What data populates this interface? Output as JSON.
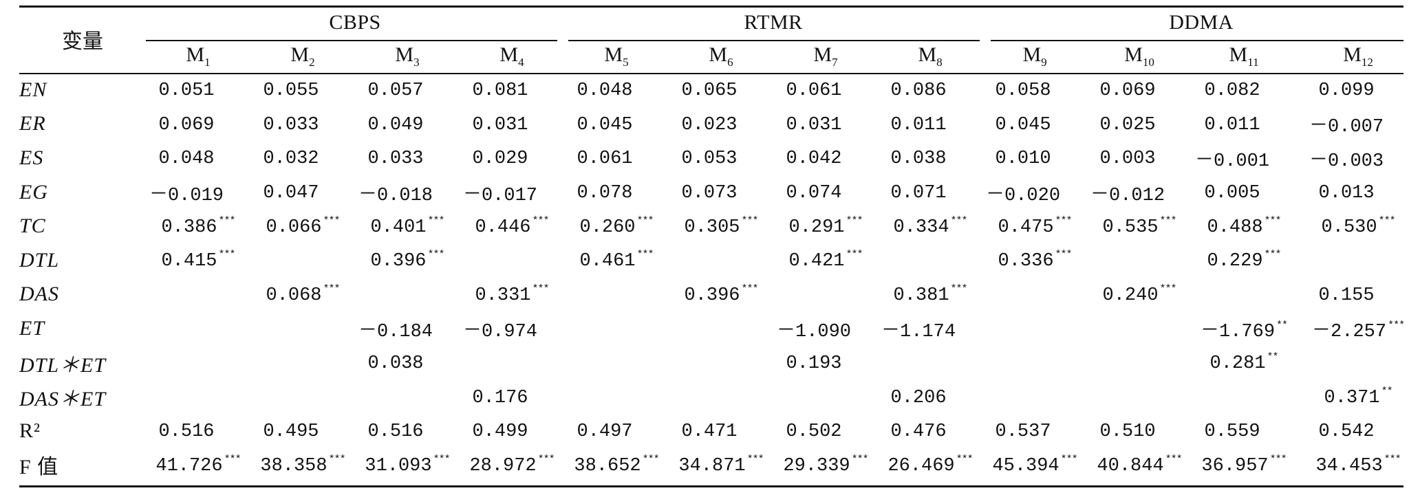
{
  "table": {
    "var_header": "变量",
    "groups": [
      "CBPS",
      "RTMR",
      "DDMA"
    ],
    "models": [
      {
        "base": "M",
        "sub": "1"
      },
      {
        "base": "M",
        "sub": "2"
      },
      {
        "base": "M",
        "sub": "3"
      },
      {
        "base": "M",
        "sub": "4"
      },
      {
        "base": "M",
        "sub": "5"
      },
      {
        "base": "M",
        "sub": "6"
      },
      {
        "base": "M",
        "sub": "7"
      },
      {
        "base": "M",
        "sub": "8"
      },
      {
        "base": "M",
        "sub": "9"
      },
      {
        "base": "M",
        "sub": "10"
      },
      {
        "base": "M",
        "sub": "11"
      },
      {
        "base": "M",
        "sub": "12"
      }
    ],
    "rows": [
      {
        "label": "EN",
        "italic": true,
        "cells": [
          {
            "v": "0.051",
            "s": ""
          },
          {
            "v": "0.055",
            "s": ""
          },
          {
            "v": "0.057",
            "s": ""
          },
          {
            "v": "0.081",
            "s": ""
          },
          {
            "v": "0.048",
            "s": ""
          },
          {
            "v": "0.065",
            "s": ""
          },
          {
            "v": "0.061",
            "s": ""
          },
          {
            "v": "0.086",
            "s": ""
          },
          {
            "v": "0.058",
            "s": ""
          },
          {
            "v": "0.069",
            "s": ""
          },
          {
            "v": "0.082",
            "s": ""
          },
          {
            "v": "0.099",
            "s": ""
          }
        ]
      },
      {
        "label": "ER",
        "italic": true,
        "cells": [
          {
            "v": "0.069",
            "s": ""
          },
          {
            "v": "0.033",
            "s": ""
          },
          {
            "v": "0.049",
            "s": ""
          },
          {
            "v": "0.031",
            "s": ""
          },
          {
            "v": "0.045",
            "s": ""
          },
          {
            "v": "0.023",
            "s": ""
          },
          {
            "v": "0.031",
            "s": ""
          },
          {
            "v": "0.011",
            "s": ""
          },
          {
            "v": "0.045",
            "s": ""
          },
          {
            "v": "0.025",
            "s": ""
          },
          {
            "v": "0.011",
            "s": ""
          },
          {
            "v": "－0.007",
            "s": ""
          }
        ]
      },
      {
        "label": "ES",
        "italic": true,
        "cells": [
          {
            "v": "0.048",
            "s": ""
          },
          {
            "v": "0.032",
            "s": ""
          },
          {
            "v": "0.033",
            "s": ""
          },
          {
            "v": "0.029",
            "s": ""
          },
          {
            "v": "0.061",
            "s": ""
          },
          {
            "v": "0.053",
            "s": ""
          },
          {
            "v": "0.042",
            "s": ""
          },
          {
            "v": "0.038",
            "s": ""
          },
          {
            "v": "0.010",
            "s": ""
          },
          {
            "v": "0.003",
            "s": ""
          },
          {
            "v": "－0.001",
            "s": ""
          },
          {
            "v": "－0.003",
            "s": ""
          }
        ]
      },
      {
        "label": "EG",
        "italic": true,
        "cells": [
          {
            "v": "－0.019",
            "s": ""
          },
          {
            "v": "0.047",
            "s": ""
          },
          {
            "v": "－0.018",
            "s": ""
          },
          {
            "v": "－0.017",
            "s": ""
          },
          {
            "v": "0.078",
            "s": ""
          },
          {
            "v": "0.073",
            "s": ""
          },
          {
            "v": "0.074",
            "s": ""
          },
          {
            "v": "0.071",
            "s": ""
          },
          {
            "v": "－0.020",
            "s": ""
          },
          {
            "v": "－0.012",
            "s": ""
          },
          {
            "v": "0.005",
            "s": ""
          },
          {
            "v": "0.013",
            "s": ""
          }
        ]
      },
      {
        "label": "TC",
        "italic": true,
        "cells": [
          {
            "v": "0.386",
            "s": "***"
          },
          {
            "v": "0.066",
            "s": "***"
          },
          {
            "v": "0.401",
            "s": "***"
          },
          {
            "v": "0.446",
            "s": "***"
          },
          {
            "v": "0.260",
            "s": "***"
          },
          {
            "v": "0.305",
            "s": "***"
          },
          {
            "v": "0.291",
            "s": "***"
          },
          {
            "v": "0.334",
            "s": "***"
          },
          {
            "v": "0.475",
            "s": "***"
          },
          {
            "v": "0.535",
            "s": "***"
          },
          {
            "v": "0.488",
            "s": "***"
          },
          {
            "v": "0.530",
            "s": "***"
          }
        ]
      },
      {
        "label": "DTL",
        "italic": true,
        "cells": [
          {
            "v": "0.415",
            "s": "***"
          },
          {
            "v": "",
            "s": ""
          },
          {
            "v": "0.396",
            "s": "***"
          },
          {
            "v": "",
            "s": ""
          },
          {
            "v": "0.461",
            "s": "***"
          },
          {
            "v": "",
            "s": ""
          },
          {
            "v": "0.421",
            "s": "***"
          },
          {
            "v": "",
            "s": ""
          },
          {
            "v": "0.336",
            "s": "***"
          },
          {
            "v": "",
            "s": ""
          },
          {
            "v": "0.229",
            "s": "***"
          },
          {
            "v": "",
            "s": ""
          }
        ]
      },
      {
        "label": "DAS",
        "italic": true,
        "cells": [
          {
            "v": "",
            "s": ""
          },
          {
            "v": "0.068",
            "s": "***"
          },
          {
            "v": "",
            "s": ""
          },
          {
            "v": "0.331",
            "s": "***"
          },
          {
            "v": "",
            "s": ""
          },
          {
            "v": "0.396",
            "s": "***"
          },
          {
            "v": "",
            "s": ""
          },
          {
            "v": "0.381",
            "s": "***"
          },
          {
            "v": "",
            "s": ""
          },
          {
            "v": "0.240",
            "s": "***"
          },
          {
            "v": "",
            "s": ""
          },
          {
            "v": "0.155",
            "s": ""
          }
        ]
      },
      {
        "label": "ET",
        "italic": true,
        "cells": [
          {
            "v": "",
            "s": ""
          },
          {
            "v": "",
            "s": ""
          },
          {
            "v": "－0.184",
            "s": ""
          },
          {
            "v": "－0.974",
            "s": ""
          },
          {
            "v": "",
            "s": ""
          },
          {
            "v": "",
            "s": ""
          },
          {
            "v": "－1.090",
            "s": ""
          },
          {
            "v": "－1.174",
            "s": ""
          },
          {
            "v": "",
            "s": ""
          },
          {
            "v": "",
            "s": ""
          },
          {
            "v": "－1.769",
            "s": "**"
          },
          {
            "v": "－2.257",
            "s": "***"
          }
        ]
      },
      {
        "label": "DTL＊ET",
        "italic": true,
        "cells": [
          {
            "v": "",
            "s": ""
          },
          {
            "v": "",
            "s": ""
          },
          {
            "v": "0.038",
            "s": ""
          },
          {
            "v": "",
            "s": ""
          },
          {
            "v": "",
            "s": ""
          },
          {
            "v": "",
            "s": ""
          },
          {
            "v": "0.193",
            "s": ""
          },
          {
            "v": "",
            "s": ""
          },
          {
            "v": "",
            "s": ""
          },
          {
            "v": "",
            "s": ""
          },
          {
            "v": "0.281",
            "s": "**"
          },
          {
            "v": "",
            "s": ""
          }
        ]
      },
      {
        "label": "DAS＊ET",
        "italic": true,
        "cells": [
          {
            "v": "",
            "s": ""
          },
          {
            "v": "",
            "s": ""
          },
          {
            "v": "",
            "s": ""
          },
          {
            "v": "0.176",
            "s": ""
          },
          {
            "v": "",
            "s": ""
          },
          {
            "v": "",
            "s": ""
          },
          {
            "v": "",
            "s": ""
          },
          {
            "v": "0.206",
            "s": ""
          },
          {
            "v": "",
            "s": ""
          },
          {
            "v": "",
            "s": ""
          },
          {
            "v": "",
            "s": ""
          },
          {
            "v": "0.371",
            "s": "**"
          }
        ]
      },
      {
        "label": "R²",
        "italic": false,
        "cells": [
          {
            "v": "0.516",
            "s": ""
          },
          {
            "v": "0.495",
            "s": ""
          },
          {
            "v": "0.516",
            "s": ""
          },
          {
            "v": "0.499",
            "s": ""
          },
          {
            "v": "0.497",
            "s": ""
          },
          {
            "v": "0.471",
            "s": ""
          },
          {
            "v": "0.502",
            "s": ""
          },
          {
            "v": "0.476",
            "s": ""
          },
          {
            "v": "0.537",
            "s": ""
          },
          {
            "v": "0.510",
            "s": ""
          },
          {
            "v": "0.559",
            "s": ""
          },
          {
            "v": "0.542",
            "s": ""
          }
        ]
      },
      {
        "label": "F 值",
        "italic": false,
        "cells": [
          {
            "v": "41.726",
            "s": "***"
          },
          {
            "v": "38.358",
            "s": "***"
          },
          {
            "v": "31.093",
            "s": "***"
          },
          {
            "v": "28.972",
            "s": "***"
          },
          {
            "v": "38.652",
            "s": "***"
          },
          {
            "v": "34.871",
            "s": "***"
          },
          {
            "v": "29.339",
            "s": "***"
          },
          {
            "v": "26.469",
            "s": "***"
          },
          {
            "v": "45.394",
            "s": "***"
          },
          {
            "v": "40.844",
            "s": "***"
          },
          {
            "v": "36.957",
            "s": "***"
          },
          {
            "v": "34.453",
            "s": "***"
          }
        ]
      }
    ]
  }
}
